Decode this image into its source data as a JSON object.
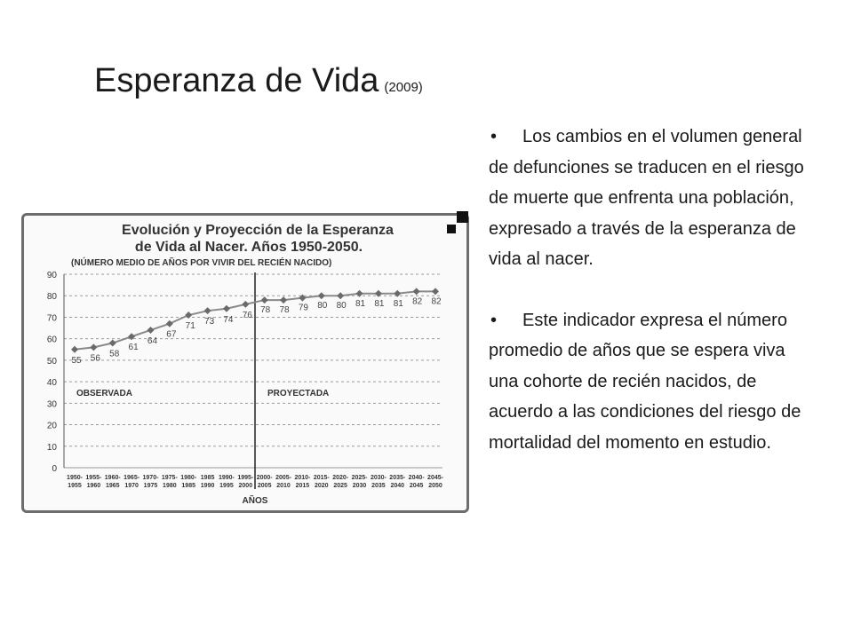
{
  "slide": {
    "title": "Esperanza de Vida",
    "title_year": "(2009)",
    "bullets": [
      "Los cambios en el volumen general de defunciones se traducen en el riesgo de muerte que enfrenta una población, expresado a través de la esperanza de vida al nacer.",
      "Este indicador expresa el número promedio de años que se espera viva una cohorte de recién nacidos, de acuerdo a las condiciones del riesgo de mortalidad del momento en estudio."
    ],
    "bullet_char": "•"
  },
  "chart_data": {
    "type": "line",
    "title_line1": "Evolución y Proyección de la Esperanza",
    "title_line2": "de Vida al Nacer. Años 1950-2050.",
    "subtitle": "(NÚMERO MEDIO DE AÑOS POR VIVIR DEL RECIÉN NACIDO)",
    "xlabel": "AÑOS",
    "ylabel": "",
    "ylim": [
      0,
      90
    ],
    "yticks": [
      0,
      10,
      20,
      30,
      40,
      50,
      60,
      70,
      80,
      90
    ],
    "categories": [
      [
        "1950-",
        "1955"
      ],
      [
        "1955-",
        "1960"
      ],
      [
        "1960-",
        "1965"
      ],
      [
        "1965-",
        "1970"
      ],
      [
        "1970-",
        "1975"
      ],
      [
        "1975-",
        "1980"
      ],
      [
        "1980-",
        "1985"
      ],
      [
        "1985",
        "1990"
      ],
      [
        "1990-",
        "1995"
      ],
      [
        "1995-",
        "2000"
      ],
      [
        "2000-",
        "2005"
      ],
      [
        "2005-",
        "2010"
      ],
      [
        "2010-",
        "2015"
      ],
      [
        "2015-",
        "2020"
      ],
      [
        "2020-",
        "2025"
      ],
      [
        "2025-",
        "2030"
      ],
      [
        "2030-",
        "2035"
      ],
      [
        "2035-",
        "2040"
      ],
      [
        "2040-",
        "2045"
      ],
      [
        "2045-",
        "2050"
      ]
    ],
    "values": [
      55,
      56,
      58,
      61,
      64,
      67,
      71,
      73,
      74,
      76,
      78,
      78,
      79,
      80,
      80,
      81,
      81,
      81,
      82,
      82
    ],
    "region_labels": {
      "observed": "OBSERVADA",
      "projected": "PROYECTADA"
    },
    "divider_after_index": 9,
    "grid": true,
    "line_color": "#8a8a8a",
    "marker_color": "#6a6a6a"
  }
}
